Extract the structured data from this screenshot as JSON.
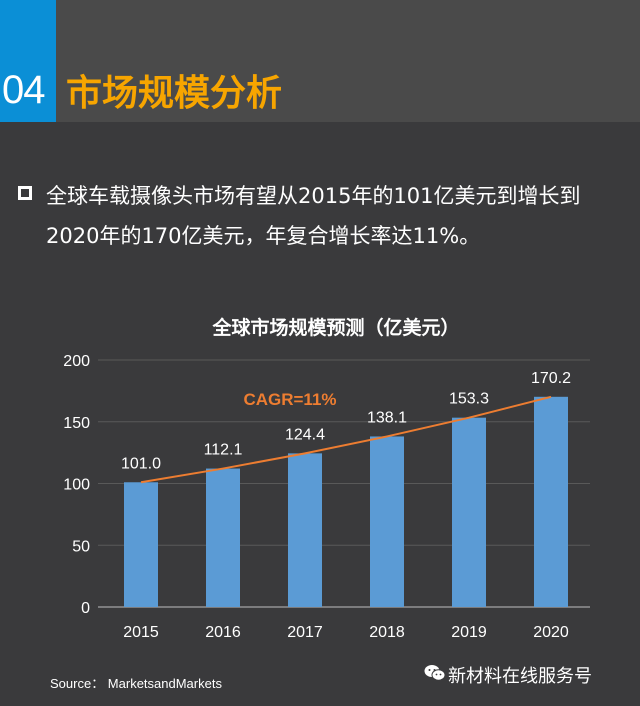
{
  "header": {
    "section_number": "04",
    "section_title": "市场规模分析"
  },
  "bullet": {
    "text": "全球车载摄像头市场有望从2015年的101亿美元到增长到2020年的170亿美元，年复合增长率达11%。"
  },
  "chart_data": {
    "type": "bar",
    "title": "全球市场规模预测（亿美元）",
    "categories": [
      "2015",
      "2016",
      "2017",
      "2018",
      "2019",
      "2020"
    ],
    "values": [
      101.0,
      112.1,
      124.4,
      138.1,
      153.3,
      170.2
    ],
    "data_labels": [
      "101.0",
      "112.1",
      "124.4",
      "138.1",
      "153.3",
      "170.2"
    ],
    "ylim": [
      0,
      200
    ],
    "yticks": [
      "0",
      "50",
      "100",
      "150",
      "200"
    ],
    "ytick_values": [
      0,
      50,
      100,
      150,
      200
    ],
    "grid": true,
    "bar_color": "#5b9bd5",
    "trend_line": true,
    "trend_color": "#ed7d31",
    "annotation": "CAGR=11%"
  },
  "footer": {
    "source": "Source： MarketsandMarkets",
    "brand": "新材料在线服务号",
    "brand_icon": "wechat-icon"
  }
}
